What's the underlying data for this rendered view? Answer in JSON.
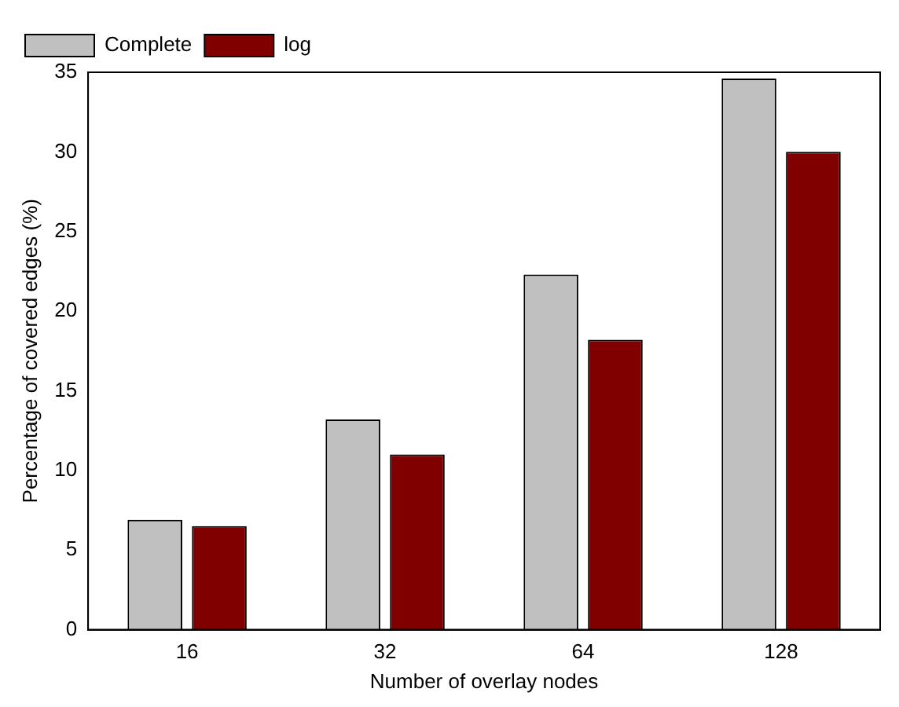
{
  "chart_data": {
    "type": "bar",
    "xlabel": "Number of overlay nodes",
    "ylabel": "Percentage of covered edges (%)",
    "categories": [
      "16",
      "32",
      "64",
      "128"
    ],
    "series": [
      {
        "name": "Complete",
        "color": "#c0c0c0",
        "values": [
          6.9,
          13.2,
          22.3,
          34.6
        ]
      },
      {
        "name": "log",
        "color": "#800000",
        "values": [
          6.5,
          11.0,
          18.2,
          30.0
        ]
      }
    ],
    "ylim": [
      0,
      35
    ],
    "yticks": [
      0,
      5,
      10,
      15,
      20,
      25,
      30,
      35
    ],
    "grid": false,
    "legend": "top left"
  }
}
